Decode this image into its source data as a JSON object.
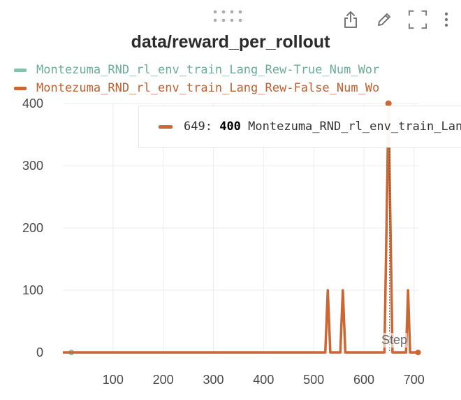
{
  "panel": {
    "title": "data/reward_per_rollout",
    "toolbar": [
      {
        "name": "export-icon",
        "label": "Export"
      },
      {
        "name": "edit-icon",
        "label": "Edit"
      },
      {
        "name": "fullscreen-icon",
        "label": "Fullscreen"
      },
      {
        "name": "more-options-icon",
        "label": "More"
      }
    ]
  },
  "tooltip": {
    "step_label": "649:",
    "value_label": "400",
    "series_label": "Montezuma_RND_rl_env_train_Lang_Rew-False_Num_Wo",
    "color": "#cc6633"
  },
  "chart_data": {
    "type": "line",
    "title": "data/reward_per_rollout",
    "xlabel": "Step",
    "ylabel": "",
    "xlim": [
      0,
      710
    ],
    "ylim": [
      0,
      400
    ],
    "x_ticks": [
      100,
      200,
      300,
      400,
      500,
      600,
      700
    ],
    "y_ticks": [
      0,
      100,
      200,
      300,
      400
    ],
    "grid": true,
    "legend_position": "top",
    "hover_x": 649,
    "series": [
      {
        "name": "Montezuma_RND_rl_env_train_Lang_Rew-True_Num_Wor",
        "color": "#7fc4ab",
        "points": [
          [
            17,
            0
          ]
        ]
      },
      {
        "name": "Montezuma_RND_rl_env_train_Lang_Rew-False_Num_Wo",
        "color": "#cc6633",
        "points": [
          [
            0,
            0
          ],
          [
            523,
            0
          ],
          [
            528,
            100
          ],
          [
            533,
            0
          ],
          [
            553,
            0
          ],
          [
            558,
            100
          ],
          [
            563,
            0
          ],
          [
            641,
            0
          ],
          [
            649,
            400
          ],
          [
            657,
            0
          ],
          [
            684,
            0
          ],
          [
            688,
            100
          ],
          [
            692,
            0
          ],
          [
            708,
            0
          ]
        ]
      }
    ]
  }
}
